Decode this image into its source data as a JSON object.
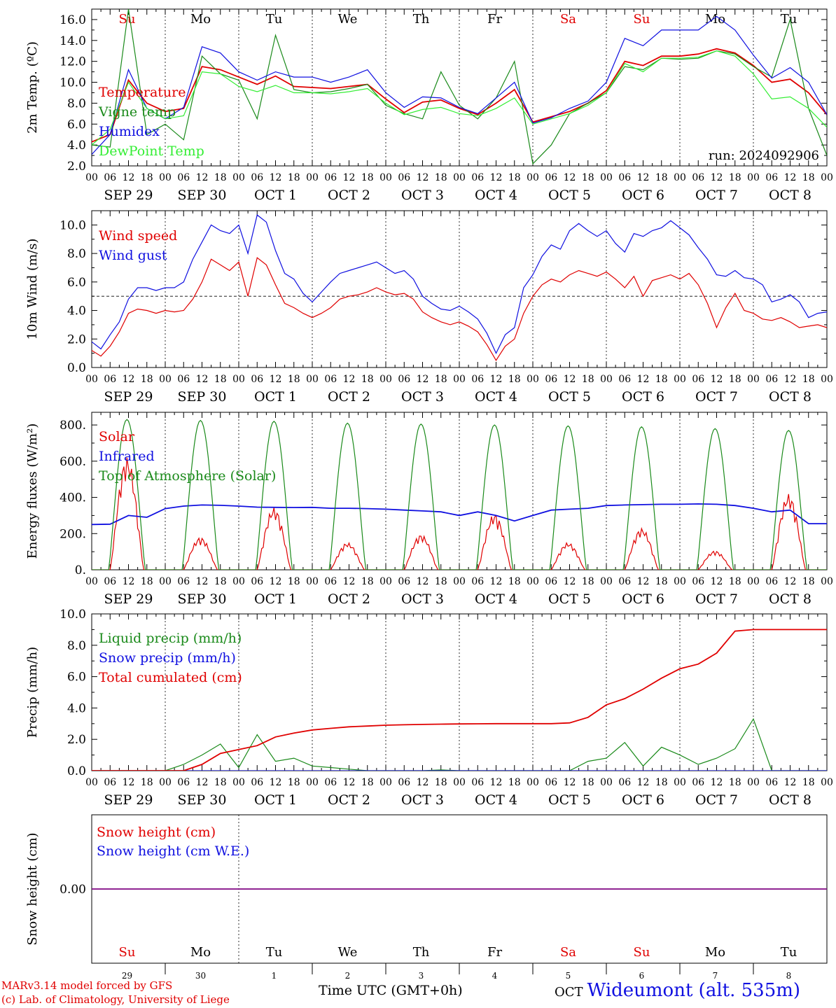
{
  "run": "run: 2024092906",
  "credits": [
    "MARv3.14 model forced by GFS",
    "(c) Lab. of Climatology, University of Liege"
  ],
  "xlabel": "Time UTC (GMT+0h)",
  "station_prefix": "OCT",
  "station": "Wideumont (alt. 535m)",
  "hour_ticks": [
    "00",
    "06",
    "12",
    "18"
  ],
  "day_labels": [
    "SEP 29",
    "SEP 30",
    "OCT 1",
    "OCT 2",
    "OCT 3",
    "OCT 4",
    "OCT 5",
    "OCT 6",
    "OCT 7",
    "OCT 8"
  ],
  "weekdays": [
    {
      "label": "Su",
      "weekend": true
    },
    {
      "label": "Mo",
      "weekend": false
    },
    {
      "label": "Tu",
      "weekend": false
    },
    {
      "label": "We",
      "weekend": false
    },
    {
      "label": "Th",
      "weekend": false
    },
    {
      "label": "Fr",
      "weekend": false
    },
    {
      "label": "Sa",
      "weekend": true
    },
    {
      "label": "Su",
      "weekend": true
    },
    {
      "label": "Mo",
      "weekend": false
    },
    {
      "label": "Tu",
      "weekend": false
    }
  ],
  "bottom_day_numbers": [
    "29",
    "30",
    "1",
    "2",
    "3",
    "4",
    "5",
    "6",
    "7",
    "8"
  ],
  "colors": {
    "red": "#e00000",
    "green": "#1a8a1a",
    "blue": "#1010e0",
    "lightgreen": "#33ee33",
    "purple": "#800080",
    "axis": "#000000"
  },
  "chart_data": [
    {
      "type": "line",
      "ylabel": "2m Temp. (ºC)",
      "ylim": [
        2.0,
        17.0
      ],
      "yticks": [
        "2.0",
        "4.0",
        "6.0",
        "8.0",
        "10.0",
        "12.0",
        "14.0",
        "16.0"
      ],
      "ytick_values": [
        2,
        4,
        6,
        8,
        10,
        12,
        14,
        16
      ],
      "x_hours": [
        0,
        6,
        12,
        18,
        24,
        30,
        36,
        42,
        48,
        54,
        60,
        66,
        72,
        78,
        84,
        90,
        96,
        102,
        108,
        114,
        120,
        126,
        132,
        138,
        144,
        150,
        156,
        162,
        168,
        174,
        180,
        186,
        192,
        198,
        204,
        210,
        216,
        222,
        228,
        234,
        240
      ],
      "series": [
        {
          "name": "Temperature",
          "color": "red",
          "values": [
            4.3,
            5.0,
            10.2,
            8.0,
            7.2,
            7.5,
            11.5,
            11.2,
            10.5,
            9.8,
            10.6,
            9.6,
            9.5,
            9.4,
            9.6,
            9.8,
            8.4,
            7.1,
            8.1,
            8.3,
            7.5,
            6.9,
            8.0,
            9.3,
            6.2,
            6.7,
            7.2,
            8.0,
            9.2,
            12.0,
            11.6,
            12.5,
            12.5,
            12.7,
            13.2,
            12.8,
            11.6,
            10.0,
            10.3,
            9.0,
            6.9
          ]
        },
        {
          "name": "Vigne temp",
          "color": "green",
          "values": [
            4.0,
            3.8,
            17.0,
            5.0,
            6.0,
            4.5,
            12.5,
            10.8,
            10.2,
            6.5,
            14.5,
            9.3,
            9.0,
            9.1,
            9.4,
            9.8,
            7.8,
            7.0,
            6.5,
            11.0,
            7.8,
            6.5,
            8.5,
            12.0,
            2.2,
            4.0,
            7.0,
            8.0,
            9.0,
            11.5,
            11.2,
            12.3,
            12.2,
            12.3,
            13.0,
            12.7,
            11.5,
            10.5,
            16.0,
            7.5,
            3.0
          ]
        },
        {
          "name": "Humidex",
          "color": "blue",
          "values": [
            3.1,
            5.0,
            11.2,
            7.5,
            6.5,
            7.6,
            13.4,
            12.8,
            11.0,
            10.2,
            11.0,
            10.5,
            10.5,
            10.0,
            10.5,
            11.2,
            9.0,
            7.6,
            8.6,
            8.5,
            7.6,
            7.0,
            8.5,
            10.0,
            6.1,
            6.6,
            7.5,
            8.2,
            10.0,
            14.2,
            13.5,
            15.0,
            15.0,
            15.0,
            16.3,
            15.0,
            12.6,
            10.4,
            11.4,
            10.0,
            6.9
          ]
        },
        {
          "name": "DewPoint Temp",
          "color": "lightgreen",
          "values": [
            4.0,
            5.5,
            10.0,
            7.5,
            6.5,
            6.8,
            11.0,
            10.8,
            9.6,
            9.1,
            9.7,
            9.0,
            9.0,
            8.9,
            9.1,
            9.4,
            8.0,
            6.9,
            7.4,
            7.6,
            7.0,
            6.8,
            7.5,
            8.5,
            6.0,
            6.5,
            7.0,
            7.8,
            9.0,
            11.8,
            11.0,
            12.3,
            12.3,
            12.4,
            13.0,
            12.5,
            10.8,
            8.4,
            8.6,
            7.5,
            5.7
          ]
        }
      ]
    },
    {
      "type": "line",
      "ylabel": "10m Wind (m/s)",
      "ylim": [
        0.0,
        11.0
      ],
      "yticks": [
        "0.0",
        "2.0",
        "4.0",
        "6.0",
        "8.0",
        "10.0"
      ],
      "ytick_values": [
        0,
        2,
        4,
        6,
        8,
        10
      ],
      "reference_line": 5.0,
      "x_hours": [
        0,
        3,
        6,
        9,
        12,
        15,
        18,
        21,
        24,
        27,
        30,
        33,
        36,
        39,
        42,
        45,
        48,
        51,
        54,
        57,
        60,
        63,
        66,
        69,
        72,
        75,
        78,
        81,
        84,
        87,
        90,
        93,
        96,
        99,
        102,
        105,
        108,
        111,
        114,
        117,
        120,
        123,
        126,
        129,
        132,
        135,
        138,
        141,
        144,
        147,
        150,
        153,
        156,
        159,
        162,
        165,
        168,
        171,
        174,
        177,
        180,
        183,
        186,
        189,
        192,
        195,
        198,
        201,
        204,
        207,
        210,
        213,
        216,
        219,
        222,
        225,
        228,
        231,
        234,
        237,
        240
      ],
      "series": [
        {
          "name": "Wind speed",
          "color": "red",
          "values": [
            1.2,
            0.8,
            1.5,
            2.5,
            3.8,
            4.1,
            4.0,
            3.8,
            4.0,
            3.9,
            4.0,
            4.8,
            6.0,
            7.6,
            7.2,
            6.8,
            7.4,
            5.0,
            7.7,
            7.2,
            5.8,
            4.5,
            4.2,
            3.8,
            3.5,
            3.8,
            4.2,
            4.8,
            5.0,
            5.1,
            5.3,
            5.6,
            5.3,
            5.1,
            5.2,
            4.8,
            3.9,
            3.5,
            3.2,
            3.0,
            3.2,
            2.9,
            2.5,
            1.6,
            0.5,
            1.5,
            2.0,
            3.8,
            5.0,
            5.8,
            6.2,
            6.0,
            6.5,
            6.8,
            6.6,
            6.4,
            6.7,
            6.2,
            5.6,
            6.4,
            5.0,
            6.1,
            6.3,
            6.5,
            6.2,
            6.6,
            5.8,
            4.5,
            2.8,
            4.2,
            5.2,
            4.0,
            3.8,
            3.4,
            3.3,
            3.5,
            3.2,
            2.8,
            2.9,
            3.0,
            2.8
          ]
        },
        {
          "name": "Wind gust",
          "color": "blue",
          "values": [
            1.8,
            1.3,
            2.3,
            3.2,
            4.8,
            5.6,
            5.6,
            5.4,
            5.6,
            5.6,
            6.0,
            7.6,
            8.8,
            10.0,
            9.6,
            9.4,
            10.0,
            8.0,
            10.7,
            10.2,
            8.2,
            6.6,
            6.2,
            5.2,
            4.6,
            5.3,
            6.0,
            6.6,
            6.8,
            7.0,
            7.2,
            7.4,
            7.0,
            6.6,
            6.8,
            6.2,
            5.0,
            4.5,
            4.1,
            4.0,
            4.3,
            3.9,
            3.4,
            2.4,
            1.0,
            2.3,
            2.8,
            5.6,
            6.5,
            7.8,
            8.6,
            8.3,
            9.6,
            10.1,
            9.6,
            9.2,
            9.6,
            8.7,
            8.1,
            9.4,
            9.2,
            9.6,
            9.8,
            10.3,
            9.8,
            9.3,
            8.4,
            7.6,
            6.5,
            6.4,
            6.8,
            6.3,
            6.2,
            5.8,
            4.6,
            4.8,
            5.1,
            4.6,
            3.5,
            3.8,
            3.9
          ]
        }
      ]
    },
    {
      "type": "line",
      "ylabel": "Energy fluxes (W/m²)",
      "ylim": [
        0,
        870
      ],
      "yticks": [
        "0.",
        "200.",
        "400.",
        "600.",
        "800."
      ],
      "ytick_values": [
        0,
        200,
        400,
        600,
        800
      ],
      "series": [
        {
          "name": "Solar",
          "color": "red",
          "daily_peaks": [
            625,
            180,
            345,
            150,
            195,
            310,
            150,
            230,
            105,
            420
          ]
        },
        {
          "name": "Infrared",
          "color": "blue",
          "values_by_day": [
            [
              250,
              252,
              300,
              290
            ],
            [
              338,
              352,
              358,
              356
            ],
            [
              352,
              346,
              345,
              344
            ],
            [
              345,
              340,
              340,
              338
            ],
            [
              335,
              330,
              325,
              320
            ],
            [
              300,
              320,
              300,
              270
            ],
            [
              300,
              330,
              335,
              340
            ],
            [
              355,
              358,
              360,
              362
            ],
            [
              362,
              364,
              362,
              355
            ],
            [
              340,
              320,
              330,
              255
            ]
          ]
        },
        {
          "name": "Top of Atmosphere (Solar)",
          "color": "green",
          "daily_peaks": [
            830,
            825,
            820,
            810,
            805,
            800,
            795,
            790,
            780,
            770
          ]
        }
      ]
    },
    {
      "type": "line",
      "ylabel": "Precip (mm/h)",
      "ylim": [
        0.0,
        10.0
      ],
      "yticks": [
        "0.0",
        "2.0",
        "4.0",
        "6.0",
        "8.0",
        "10.0"
      ],
      "ytick_values": [
        0,
        2,
        4,
        6,
        8,
        10
      ],
      "x_hours": [
        0,
        6,
        12,
        18,
        24,
        30,
        36,
        42,
        48,
        54,
        60,
        66,
        72,
        78,
        84,
        90,
        96,
        102,
        108,
        114,
        120,
        126,
        132,
        138,
        144,
        150,
        156,
        162,
        168,
        174,
        180,
        186,
        192,
        198,
        204,
        210,
        216,
        222,
        228,
        234,
        240
      ],
      "series": [
        {
          "name": "Liquid precip (mm/h)",
          "color": "green",
          "values": [
            0,
            0,
            0,
            0,
            0,
            0.4,
            1.0,
            1.7,
            0.2,
            2.3,
            0.6,
            0.8,
            0.3,
            0.2,
            0.1,
            0,
            0,
            0,
            0,
            0.05,
            0,
            0,
            0,
            0,
            0,
            0,
            0,
            0.6,
            0.8,
            1.8,
            0.3,
            1.5,
            1.0,
            0.4,
            0.8,
            1.4,
            3.3,
            0,
            0,
            0,
            0
          ]
        },
        {
          "name": "Snow precip (mm/h)",
          "color": "blue",
          "values": [
            0,
            0,
            0,
            0,
            0,
            0,
            0,
            0,
            0,
            0,
            0,
            0,
            0,
            0,
            0,
            0,
            0,
            0,
            0,
            0,
            0,
            0,
            0,
            0,
            0,
            0,
            0,
            0,
            0,
            0,
            0,
            0,
            0,
            0,
            0,
            0,
            0,
            0,
            0,
            0,
            0
          ]
        },
        {
          "name": "Total cumulated (cm)",
          "color": "red",
          "values": [
            0,
            0,
            0,
            0,
            0,
            0,
            0.4,
            1.1,
            1.35,
            1.6,
            2.15,
            2.4,
            2.6,
            2.7,
            2.8,
            2.85,
            2.9,
            2.93,
            2.95,
            2.97,
            2.98,
            2.99,
            3.0,
            3.0,
            3.0,
            3.0,
            3.05,
            3.4,
            4.2,
            4.6,
            5.2,
            5.9,
            6.5,
            6.8,
            7.5,
            8.9,
            9.0,
            9.0,
            9.0,
            9.0,
            9.0
          ]
        }
      ]
    },
    {
      "type": "line",
      "ylabel": "Snow height (cm)",
      "ylim": [
        -1.0,
        1.0
      ],
      "yticks": [
        "0.00"
      ],
      "ytick_values": [
        0
      ],
      "series": [
        {
          "name": "Snow height (cm)",
          "color": "red",
          "values": [
            0,
            0
          ]
        },
        {
          "name": "Snow height (cm W.E.)",
          "color": "blue",
          "values": [
            0,
            0
          ]
        }
      ]
    }
  ]
}
